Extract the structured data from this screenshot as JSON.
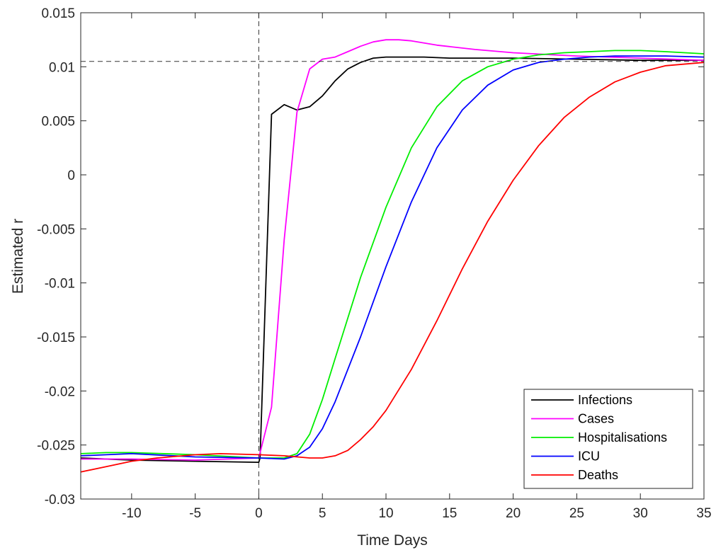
{
  "chart_data": {
    "type": "line",
    "xlabel": "Time Days",
    "ylabel": "Estimated r",
    "xlim": [
      -14,
      35
    ],
    "ylim": [
      -0.03,
      0.015
    ],
    "xticks": [
      -10,
      -5,
      0,
      5,
      10,
      15,
      20,
      25,
      30,
      35
    ],
    "xtick_labels": [
      "-10",
      "-5",
      "0",
      "5",
      "10",
      "15",
      "20",
      "25",
      "30",
      "35"
    ],
    "yticks": [
      -0.03,
      -0.025,
      -0.02,
      -0.015,
      -0.01,
      -0.005,
      0,
      0.005,
      0.01,
      0.015
    ],
    "ytick_labels": [
      "-0.03",
      "-0.025",
      "-0.02",
      "-0.015",
      "-0.01",
      "-0.005",
      "0",
      "0.005",
      "0.01",
      "0.015"
    ],
    "reference_lines": {
      "horizontal_y": 0.0105,
      "vertical_x": 0
    },
    "legend_position": "bottom-right",
    "box": true,
    "grid": false,
    "series": [
      {
        "name": "Infections",
        "color": "#000000",
        "x": [
          -14,
          -10,
          -5,
          0,
          0.1,
          1,
          2,
          3,
          4,
          5,
          6,
          7,
          8,
          9,
          10,
          11,
          13,
          15,
          20,
          25,
          30,
          35
        ],
        "y": [
          -0.0262,
          -0.0264,
          -0.0265,
          -0.0266,
          -0.0262,
          0.0056,
          0.0065,
          0.006,
          0.0063,
          0.0073,
          0.0087,
          0.0098,
          0.0104,
          0.0108,
          0.0109,
          0.0109,
          0.0109,
          0.0108,
          0.0108,
          0.0107,
          0.0106,
          0.0106
        ]
      },
      {
        "name": "Cases",
        "color": "#ff00ff",
        "x": [
          -14,
          -10,
          -5,
          0,
          1,
          2,
          3,
          4,
          5,
          6,
          7,
          8,
          9,
          10,
          11,
          12,
          14,
          17,
          20,
          25,
          30,
          35
        ],
        "y": [
          -0.0263,
          -0.0263,
          -0.0264,
          -0.0262,
          -0.0215,
          -0.006,
          0.0058,
          0.0098,
          0.0107,
          0.0109,
          0.0114,
          0.0119,
          0.0123,
          0.0125,
          0.0125,
          0.0124,
          0.012,
          0.0116,
          0.0113,
          0.011,
          0.0108,
          0.0106
        ]
      },
      {
        "name": "Hospitalisations",
        "color": "#00ee00",
        "x": [
          -14,
          -12,
          -10,
          -5,
          0,
          2,
          3,
          4,
          5,
          6,
          8,
          10,
          12,
          14,
          16,
          18,
          20,
          22,
          24,
          26,
          28,
          30,
          32,
          35
        ],
        "y": [
          -0.0258,
          -0.0257,
          -0.0257,
          -0.0259,
          -0.0262,
          -0.0262,
          -0.0258,
          -0.024,
          -0.0208,
          -0.017,
          -0.0095,
          -0.003,
          0.0025,
          0.0063,
          0.0087,
          0.01,
          0.0107,
          0.0111,
          0.0113,
          0.0114,
          0.0115,
          0.0115,
          0.0114,
          0.0112
        ]
      },
      {
        "name": "ICU",
        "color": "#0000ff",
        "x": [
          -14,
          -10,
          -5,
          0,
          2,
          3,
          4,
          5,
          6,
          8,
          10,
          12,
          14,
          16,
          18,
          20,
          22,
          24,
          26,
          28,
          30,
          32,
          35
        ],
        "y": [
          -0.026,
          -0.0258,
          -0.0261,
          -0.0262,
          -0.0263,
          -0.026,
          -0.0252,
          -0.0235,
          -0.021,
          -0.015,
          -0.0085,
          -0.0025,
          0.0025,
          0.006,
          0.0083,
          0.0097,
          0.0104,
          0.0107,
          0.0109,
          0.011,
          0.011,
          0.011,
          0.0109
        ]
      },
      {
        "name": "Deaths",
        "color": "#ff0000",
        "x": [
          -14,
          -12,
          -10,
          -8,
          -5,
          -3,
          0,
          2,
          4,
          5,
          6,
          7,
          8,
          9,
          10,
          12,
          14,
          16,
          18,
          20,
          22,
          24,
          26,
          28,
          30,
          32,
          35
        ],
        "y": [
          -0.0275,
          -0.027,
          -0.0265,
          -0.0262,
          -0.0259,
          -0.0258,
          -0.0259,
          -0.026,
          -0.0262,
          -0.0262,
          -0.026,
          -0.0255,
          -0.0245,
          -0.0233,
          -0.0218,
          -0.018,
          -0.0135,
          -0.0087,
          -0.0043,
          -0.0005,
          0.0027,
          0.0053,
          0.0072,
          0.0086,
          0.0095,
          0.0101,
          0.0104
        ]
      }
    ]
  }
}
